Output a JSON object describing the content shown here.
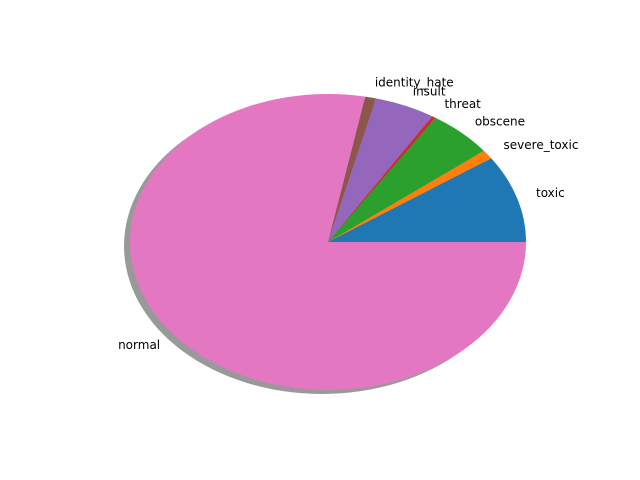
{
  "chart_data": {
    "type": "pie",
    "title": "",
    "shadow": true,
    "start_angle": 0,
    "direction": "counterclockwise",
    "aspect": "elliptical",
    "slices": [
      {
        "label": "toxic",
        "value": 0.0958,
        "color": "#1f77b4"
      },
      {
        "label": "severe_toxic",
        "value": 0.01,
        "color": "#ff7f0e"
      },
      {
        "label": "obscene",
        "value": 0.0529,
        "color": "#2ca02c"
      },
      {
        "label": "threat",
        "value": 0.003,
        "color": "#d62728"
      },
      {
        "label": "insult",
        "value": 0.0494,
        "color": "#9467bd"
      },
      {
        "label": "identity_hate",
        "value": 0.0088,
        "color": "#8c564b"
      },
      {
        "label": "normal",
        "value": 0.7801,
        "color": "#e377c2"
      }
    ],
    "shadow_color": "#999999"
  }
}
